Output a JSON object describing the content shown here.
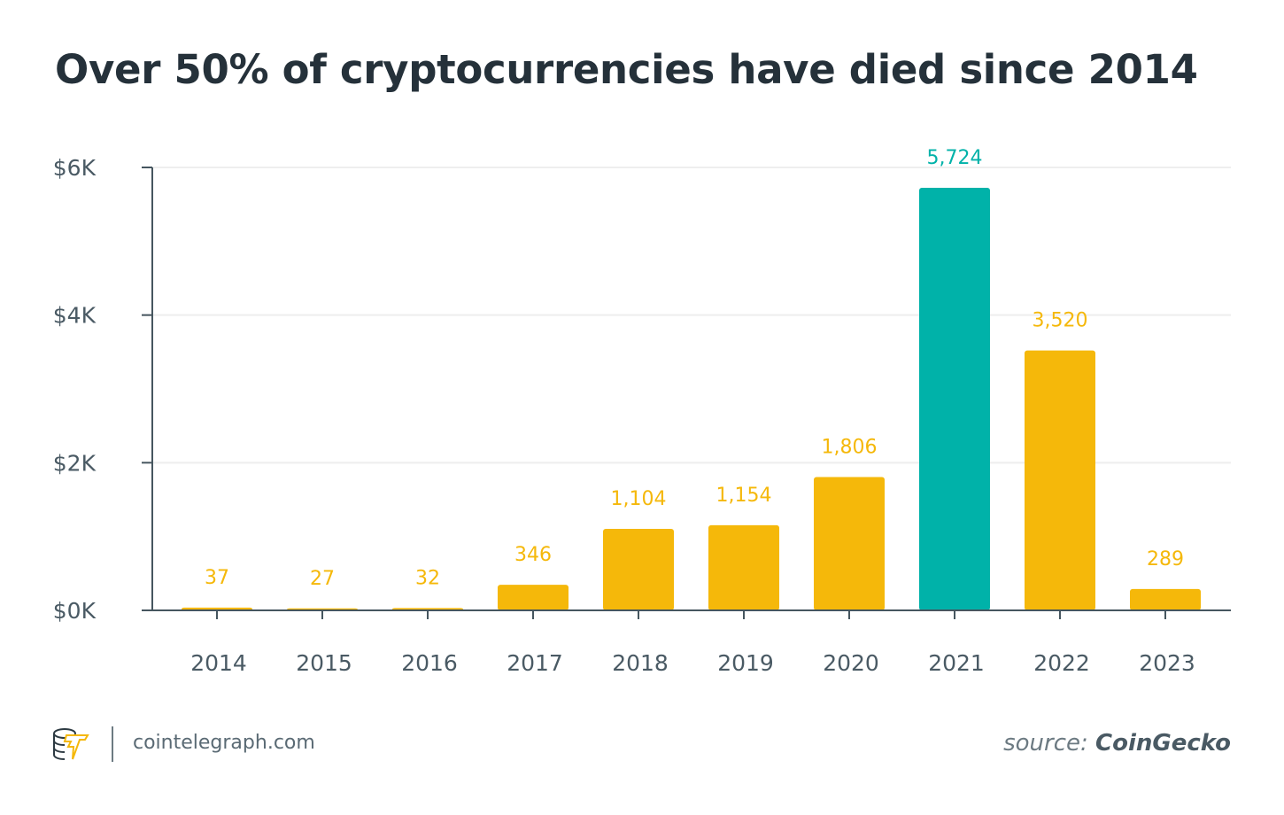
{
  "chart_data": {
    "type": "bar",
    "title": "Over 50% of cryptocurrencies have died since 2014",
    "categories": [
      "2014",
      "2015",
      "2016",
      "2017",
      "2018",
      "2019",
      "2020",
      "2021",
      "2022",
      "2023"
    ],
    "values": [
      37,
      27,
      32,
      346,
      1104,
      1154,
      1806,
      5724,
      3520,
      289
    ],
    "data_labels": [
      "37",
      "27",
      "32",
      "346",
      "1,104",
      "1,154",
      "1,806",
      "5,724",
      "3,520",
      "289"
    ],
    "highlight_index": 7,
    "y_ticks": [
      {
        "value": 0,
        "label": "$0K"
      },
      {
        "value": 2000,
        "label": "$2K"
      },
      {
        "value": 4000,
        "label": "$4K"
      },
      {
        "value": 6000,
        "label": "$6K"
      }
    ],
    "ylim": [
      0,
      6000
    ],
    "xlabel": "",
    "ylabel": "",
    "grid": true,
    "colors": {
      "bar": "#f5b80a",
      "highlight": "#00b2a9",
      "axis": "#46565f",
      "grid": "#eeeeee"
    }
  },
  "footer": {
    "site": "cointelegraph.com",
    "source_prefix": "source:",
    "source_name": "CoinGecko",
    "logo_icon": "cointelegraph-logo-icon"
  }
}
